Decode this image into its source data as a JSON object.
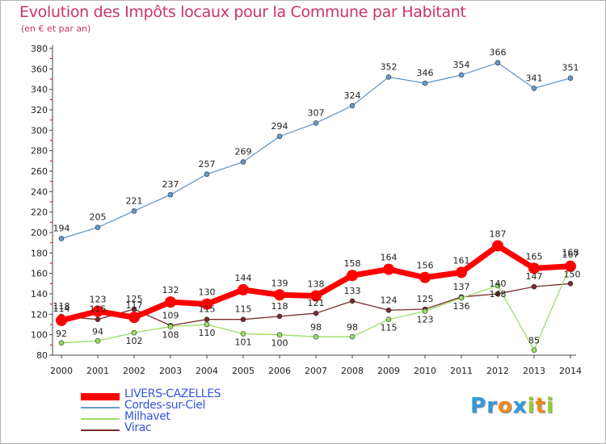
{
  "chart_data": {
    "type": "line",
    "title": "Evolution des Impôts locaux pour la Commune par Habitant",
    "subtitle": "(en € et par an)",
    "xlabel": "",
    "ylabel": "",
    "x": [
      "2000",
      "2001",
      "2002",
      "2003",
      "2004",
      "2005",
      "2006",
      "2007",
      "2008",
      "2009",
      "2010",
      "2011",
      "2012",
      "2013",
      "2014"
    ],
    "ylim": [
      80,
      380
    ],
    "yticks": [
      80,
      100,
      120,
      140,
      160,
      180,
      200,
      220,
      240,
      260,
      280,
      300,
      320,
      340,
      360,
      380
    ],
    "grid": false,
    "legend_position": "bottom-left",
    "series": [
      {
        "name": "LIVERS-CAZELLES",
        "color": "#ff0000",
        "values": [
          114,
          123,
          117,
          132,
          130,
          144,
          139,
          138,
          158,
          164,
          156,
          161,
          187,
          165,
          167
        ]
      },
      {
        "name": "Cordes-sur-Ciel",
        "color": "#6699cc",
        "values": [
          194,
          205,
          221,
          237,
          257,
          269,
          294,
          307,
          324,
          352,
          346,
          354,
          366,
          341,
          351
        ]
      },
      {
        "name": "Milhavet",
        "color": "#99dd66",
        "values": [
          92,
          94,
          102,
          108,
          110,
          101,
          100,
          98,
          98,
          115,
          123,
          136,
          148,
          85,
          168
        ]
      },
      {
        "name": "Virac",
        "color": "#7a2a2a",
        "values": [
          118,
          115,
          125,
          109,
          115,
          115,
          118,
          121,
          133,
          124,
          125,
          137,
          140,
          147,
          150
        ]
      }
    ]
  },
  "logo": {
    "letters": [
      {
        "ch": "P",
        "color": "#3399dd"
      },
      {
        "ch": "r",
        "color": "#3399dd"
      },
      {
        "ch": "o",
        "color": "#ee8822"
      },
      {
        "ch": "x",
        "color": "#3399dd"
      },
      {
        "ch": "i",
        "color": "#99cc33"
      },
      {
        "ch": "t",
        "color": "#ee8822"
      },
      {
        "ch": "i",
        "color": "#99cc33"
      }
    ]
  }
}
